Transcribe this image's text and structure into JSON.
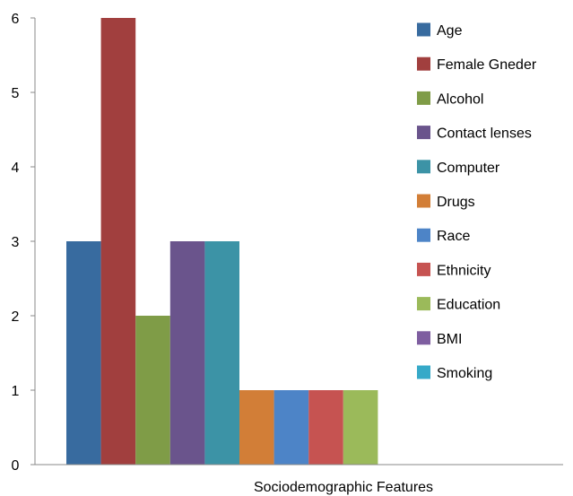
{
  "chart_data": {
    "type": "bar",
    "title": "",
    "xlabel": "Sociodemographic Features",
    "ylabel": "",
    "ylim": [
      0,
      6
    ],
    "yticks": [
      0,
      1,
      2,
      3,
      4,
      5,
      6
    ],
    "grid": false,
    "legend_position": "right",
    "categories": [
      "Sociodemographic Features"
    ],
    "series": [
      {
        "name": "Age",
        "values": [
          3
        ],
        "color": "#386B9F"
      },
      {
        "name": "Female Gneder",
        "values": [
          6
        ],
        "color": "#A13F3E"
      },
      {
        "name": "Alcohol",
        "values": [
          2
        ],
        "color": "#7F9C47"
      },
      {
        "name": "Contact lenses",
        "values": [
          3
        ],
        "color": "#6A548C"
      },
      {
        "name": "Computer",
        "values": [
          3
        ],
        "color": "#3C93A6"
      },
      {
        "name": "Drugs",
        "values": [
          1
        ],
        "color": "#D27E37"
      },
      {
        "name": "Race",
        "values": [
          1
        ],
        "color": "#4D84C7"
      },
      {
        "name": "Ethnicity",
        "values": [
          1
        ],
        "color": "#C65351"
      },
      {
        "name": "Education",
        "values": [
          1
        ],
        "color": "#9BBA5A"
      },
      {
        "name": "BMI",
        "values": [
          0
        ],
        "color": "#7E5EA0"
      },
      {
        "name": "Smoking",
        "values": [
          0
        ],
        "color": "#36A9C8"
      }
    ]
  }
}
